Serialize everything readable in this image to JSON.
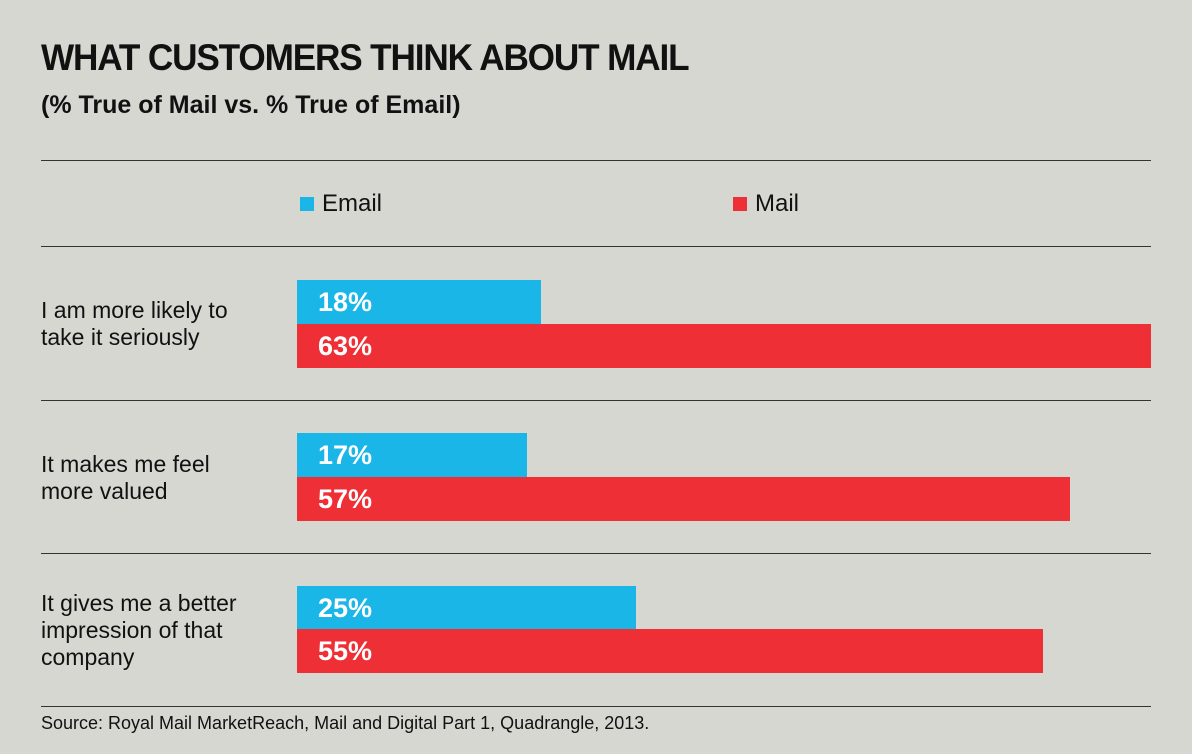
{
  "colors": {
    "email": "#1bb6e8",
    "mail": "#ee2f36",
    "background": "#d6d7d1"
  },
  "chart_data": {
    "type": "bar",
    "orientation": "horizontal",
    "title": "WHAT CUSTOMERS THINK ABOUT MAIL",
    "subtitle": "(% True of Mail vs. % True of Email)",
    "legend_position": "top",
    "grid": false,
    "categories": [
      "I am more likely to take it seriously",
      "It makes me feel more valued",
      "It gives me a better impression of that company"
    ],
    "series": [
      {
        "name": "Email",
        "values": [
          18,
          17,
          25
        ],
        "labels": [
          "18%",
          "17%",
          "25%"
        ]
      },
      {
        "name": "Mail",
        "values": [
          63,
          57,
          55
        ],
        "labels": [
          "63%",
          "57%",
          "55%"
        ]
      }
    ],
    "xlim": [
      0,
      63
    ],
    "source": "Source: Royal Mail MarketReach, Mail and Digital Part 1, Quadrangle, 2013."
  }
}
